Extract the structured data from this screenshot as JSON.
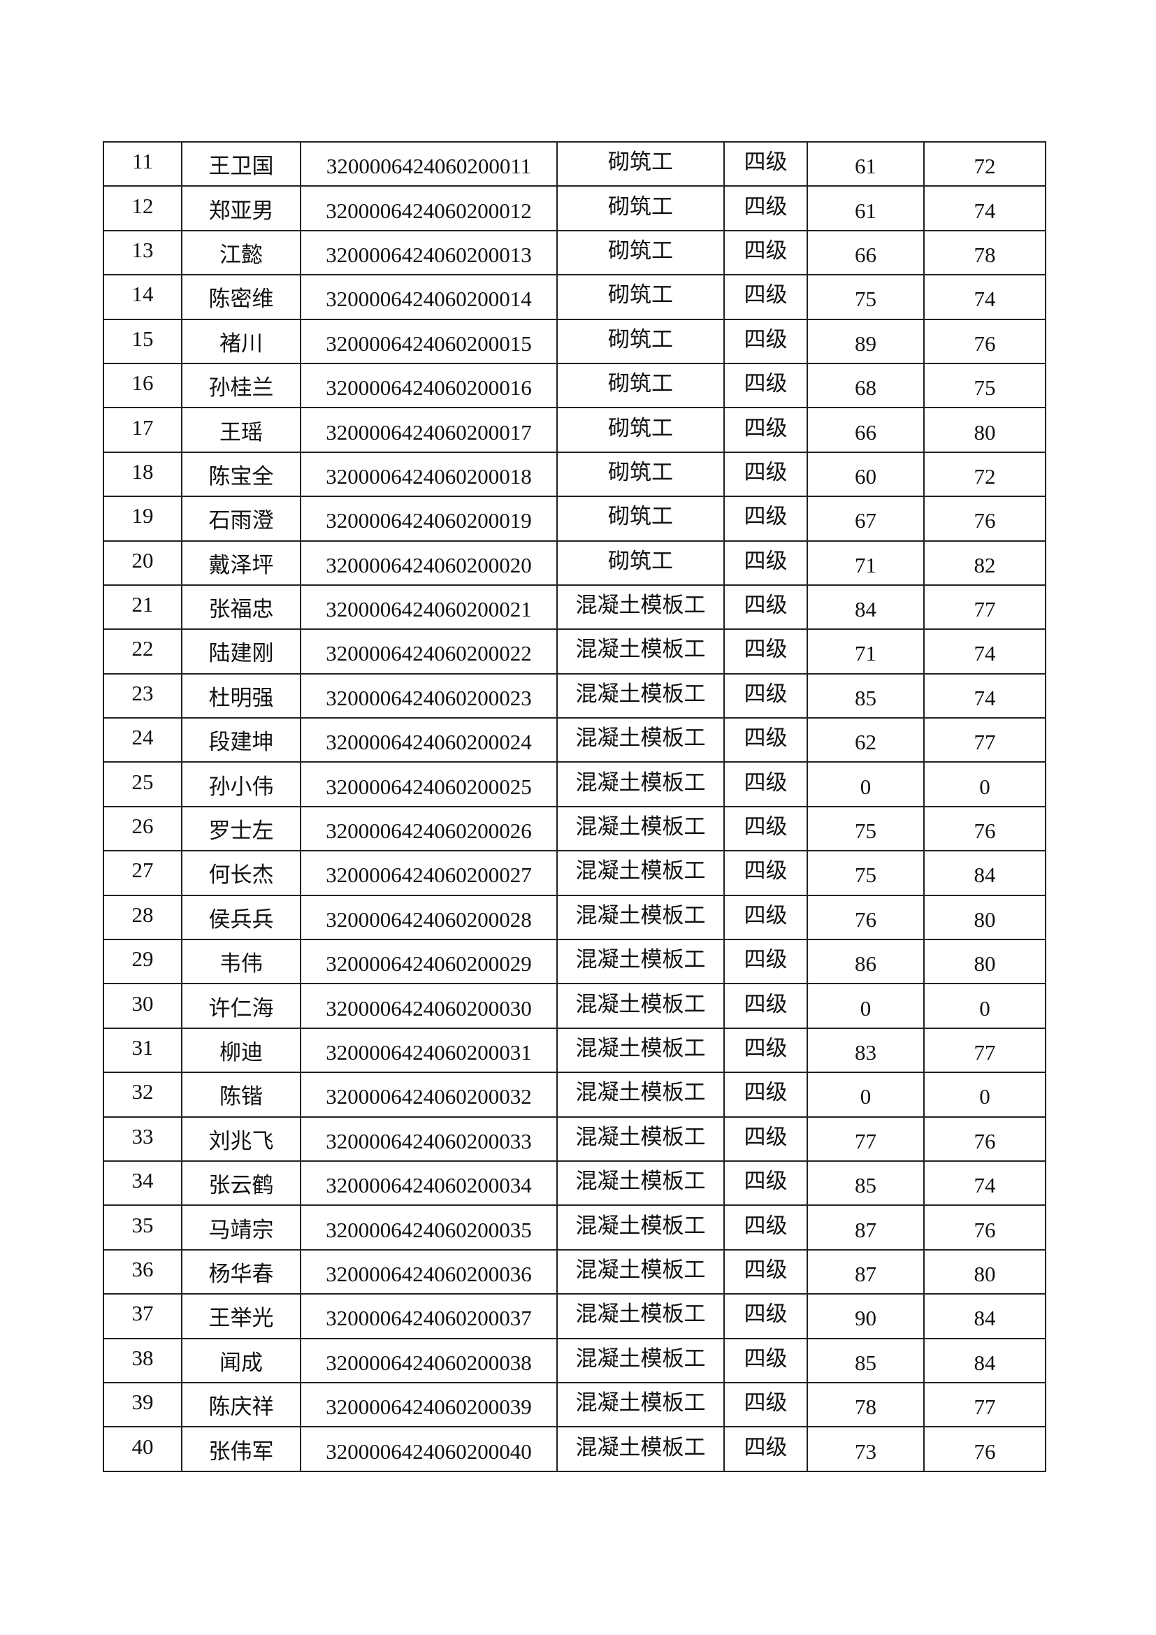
{
  "table": {
    "rows": [
      [
        "11",
        "王卫国",
        "3200006424060200011",
        "砌筑工",
        "四级",
        "61",
        "72"
      ],
      [
        "12",
        "郑亚男",
        "3200006424060200012",
        "砌筑工",
        "四级",
        "61",
        "74"
      ],
      [
        "13",
        "江懿",
        "3200006424060200013",
        "砌筑工",
        "四级",
        "66",
        "78"
      ],
      [
        "14",
        "陈密维",
        "3200006424060200014",
        "砌筑工",
        "四级",
        "75",
        "74"
      ],
      [
        "15",
        "褚川",
        "3200006424060200015",
        "砌筑工",
        "四级",
        "89",
        "76"
      ],
      [
        "16",
        "孙桂兰",
        "3200006424060200016",
        "砌筑工",
        "四级",
        "68",
        "75"
      ],
      [
        "17",
        "王瑶",
        "3200006424060200017",
        "砌筑工",
        "四级",
        "66",
        "80"
      ],
      [
        "18",
        "陈宝全",
        "3200006424060200018",
        "砌筑工",
        "四级",
        "60",
        "72"
      ],
      [
        "19",
        "石雨澄",
        "3200006424060200019",
        "砌筑工",
        "四级",
        "67",
        "76"
      ],
      [
        "20",
        "戴泽坪",
        "3200006424060200020",
        "砌筑工",
        "四级",
        "71",
        "82"
      ],
      [
        "21",
        "张福忠",
        "3200006424060200021",
        "混凝土模板工",
        "四级",
        "84",
        "77"
      ],
      [
        "22",
        "陆建刚",
        "3200006424060200022",
        "混凝土模板工",
        "四级",
        "71",
        "74"
      ],
      [
        "23",
        "杜明强",
        "3200006424060200023",
        "混凝土模板工",
        "四级",
        "85",
        "74"
      ],
      [
        "24",
        "段建坤",
        "3200006424060200024",
        "混凝土模板工",
        "四级",
        "62",
        "77"
      ],
      [
        "25",
        "孙小伟",
        "3200006424060200025",
        "混凝土模板工",
        "四级",
        "0",
        "0"
      ],
      [
        "26",
        "罗士左",
        "3200006424060200026",
        "混凝土模板工",
        "四级",
        "75",
        "76"
      ],
      [
        "27",
        "何长杰",
        "3200006424060200027",
        "混凝土模板工",
        "四级",
        "75",
        "84"
      ],
      [
        "28",
        "侯兵兵",
        "3200006424060200028",
        "混凝土模板工",
        "四级",
        "76",
        "80"
      ],
      [
        "29",
        "韦伟",
        "3200006424060200029",
        "混凝土模板工",
        "四级",
        "86",
        "80"
      ],
      [
        "30",
        "许仁海",
        "3200006424060200030",
        "混凝土模板工",
        "四级",
        "0",
        "0"
      ],
      [
        "31",
        "柳迪",
        "3200006424060200031",
        "混凝土模板工",
        "四级",
        "83",
        "77"
      ],
      [
        "32",
        "陈锴",
        "3200006424060200032",
        "混凝土模板工",
        "四级",
        "0",
        "0"
      ],
      [
        "33",
        "刘兆飞",
        "3200006424060200033",
        "混凝土模板工",
        "四级",
        "77",
        "76"
      ],
      [
        "34",
        "张云鹤",
        "3200006424060200034",
        "混凝土模板工",
        "四级",
        "85",
        "74"
      ],
      [
        "35",
        "马靖宗",
        "3200006424060200035",
        "混凝土模板工",
        "四级",
        "87",
        "76"
      ],
      [
        "36",
        "杨华春",
        "3200006424060200036",
        "混凝土模板工",
        "四级",
        "87",
        "80"
      ],
      [
        "37",
        "王举光",
        "3200006424060200037",
        "混凝土模板工",
        "四级",
        "90",
        "84"
      ],
      [
        "38",
        "闻成",
        "3200006424060200038",
        "混凝土模板工",
        "四级",
        "85",
        "84"
      ],
      [
        "39",
        "陈庆祥",
        "3200006424060200039",
        "混凝土模板工",
        "四级",
        "78",
        "77"
      ],
      [
        "40",
        "张伟军",
        "3200006424060200040",
        "混凝土模板工",
        "四级",
        "73",
        "76"
      ]
    ]
  }
}
